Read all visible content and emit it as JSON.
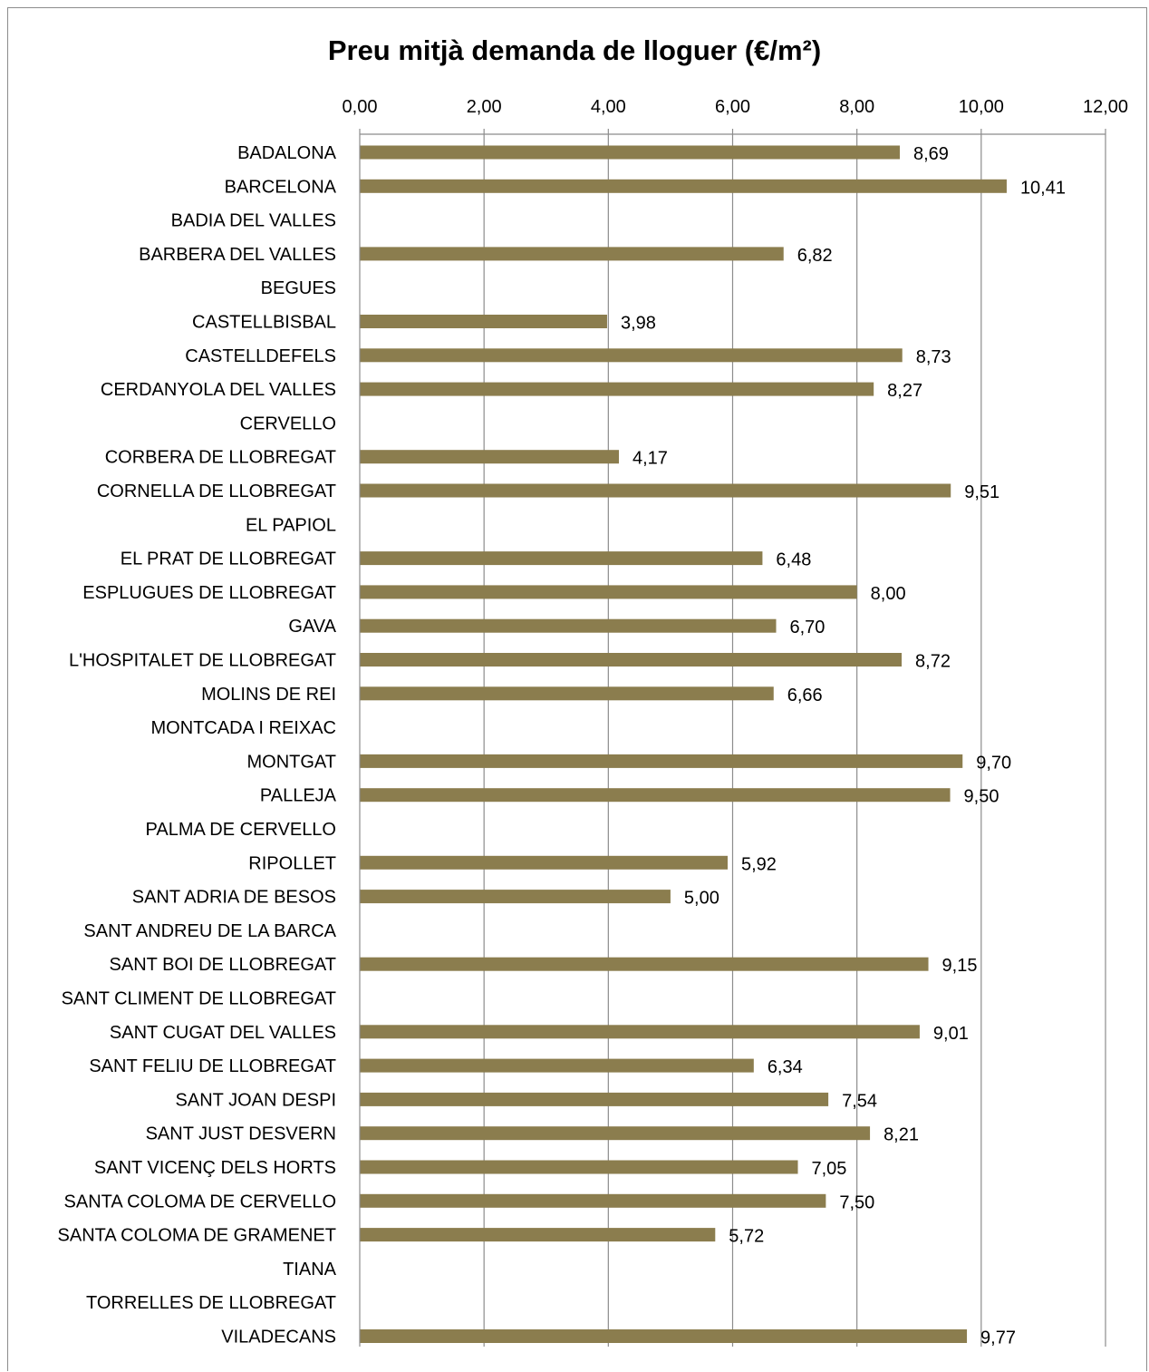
{
  "chart_data": {
    "type": "bar",
    "orientation": "horizontal",
    "title": "Preu mitjà demanda de lloguer (€/m²)",
    "xlim": [
      0,
      12
    ],
    "x_ticks": [
      "0,00",
      "2,00",
      "4,00",
      "6,00",
      "8,00",
      "10,00",
      "12,00"
    ],
    "x_axis_position": "top",
    "grid": true,
    "legend": "none",
    "bar_color": "#8b7d4e",
    "categories": [
      "BADALONA",
      "BARCELONA",
      "BADIA DEL VALLES",
      "BARBERA DEL VALLES",
      "BEGUES",
      "CASTELLBISBAL",
      "CASTELLDEFELS",
      "CERDANYOLA DEL VALLES",
      "CERVELLO",
      "CORBERA DE LLOBREGAT",
      "CORNELLA DE LLOBREGAT",
      "EL PAPIOL",
      "EL PRAT DE LLOBREGAT",
      "ESPLUGUES DE LLOBREGAT",
      "GAVA",
      "L'HOSPITALET DE LLOBREGAT",
      "MOLINS DE REI",
      "MONTCADA I REIXAC",
      "MONTGAT",
      "PALLEJA",
      "PALMA DE CERVELLO",
      "RIPOLLET",
      "SANT ADRIA DE BESOS",
      "SANT ANDREU DE LA BARCA",
      "SANT BOI DE LLOBREGAT",
      "SANT CLIMENT DE LLOBREGAT",
      "SANT CUGAT DEL VALLES",
      "SANT FELIU DE LLOBREGAT",
      "SANT JOAN DESPI",
      "SANT JUST DESVERN",
      "SANT VICENÇ DELS HORTS",
      "SANTA COLOMA DE CERVELLO",
      "SANTA COLOMA DE GRAMENET",
      "TIANA",
      "TORRELLES DE LLOBREGAT",
      "VILADECANS"
    ],
    "values": [
      8.69,
      10.41,
      null,
      6.82,
      null,
      3.98,
      8.73,
      8.27,
      null,
      4.17,
      9.51,
      null,
      6.48,
      8.0,
      6.7,
      8.72,
      6.66,
      null,
      9.7,
      9.5,
      null,
      5.92,
      5.0,
      null,
      9.15,
      null,
      9.01,
      6.34,
      7.54,
      8.21,
      7.05,
      7.5,
      5.72,
      null,
      null,
      9.77
    ],
    "value_labels": [
      "8,69",
      "10,41",
      "",
      "6,82",
      "",
      "3,98",
      "8,73",
      "8,27",
      "",
      "4,17",
      "9,51",
      "",
      "6,48",
      "8,00",
      "6,70",
      "8,72",
      "6,66",
      "",
      "9,70",
      "9,50",
      "",
      "5,92",
      "5,00",
      "",
      "9,15",
      "",
      "9,01",
      "6,34",
      "7,54",
      "8,21",
      "7,05",
      "7,50",
      "5,72",
      "",
      "",
      "9,77"
    ]
  }
}
